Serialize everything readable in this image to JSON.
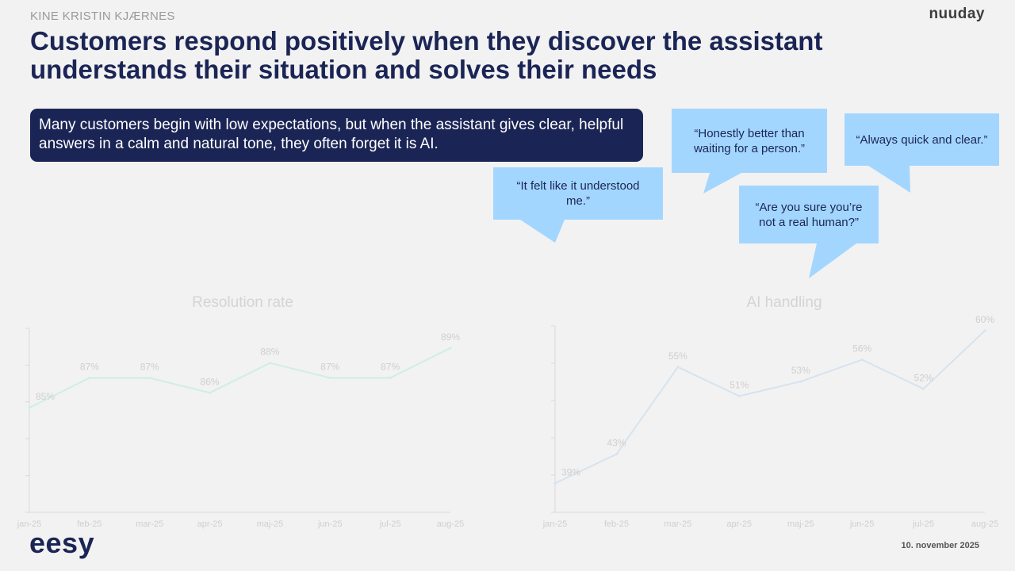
{
  "header": {
    "author": "KINE KRISTIN KJÆRNES",
    "brand": "nuuday",
    "title": "Customers respond positively when they discover the assistant understands their situation and solves their needs"
  },
  "callout": {
    "text": "Many customers begin with low expectations, but when the assistant gives clear, helpful answers in a calm and natural tone, they often forget it is AI."
  },
  "quotes": [
    "“It felt like it understood me.”",
    "“Honestly better than waiting for a person.”",
    "“Are you sure you’re not a real human?”",
    "“Always quick and clear.”"
  ],
  "colors": {
    "navy": "#1b2555",
    "bubble": "#a3d6ff",
    "resolution_line": "#cfeee4",
    "ai_line": "#d6e3ef",
    "faded_text": "#cfcfcf"
  },
  "chart_data": [
    {
      "type": "line",
      "title": "Resolution rate",
      "categories": [
        "jan-25",
        "feb-25",
        "mar-25",
        "apr-25",
        "maj-25",
        "jun-25",
        "jul-25",
        "aug-25"
      ],
      "values": [
        85,
        87,
        87,
        86,
        88,
        87,
        87,
        89
      ],
      "labels": [
        "85%",
        "87%",
        "87%",
        "86%",
        "88%",
        "87%",
        "87%",
        "89%"
      ],
      "ylim": [
        78,
        90
      ],
      "grid": false
    },
    {
      "type": "line",
      "title": "AI handling",
      "categories": [
        "jan-25",
        "feb-25",
        "mar-25",
        "apr-25",
        "maj-25",
        "jun-25",
        "jul-25",
        "aug-25"
      ],
      "values": [
        39,
        43,
        55,
        51,
        53,
        56,
        52,
        60
      ],
      "labels": [
        "39%",
        "43%",
        "55%",
        "51%",
        "53%",
        "56%",
        "52%",
        "60%"
      ],
      "ylim": [
        35,
        60
      ],
      "grid": false
    }
  ],
  "footer": {
    "logo": "eesy",
    "date": "10. november 2025"
  }
}
